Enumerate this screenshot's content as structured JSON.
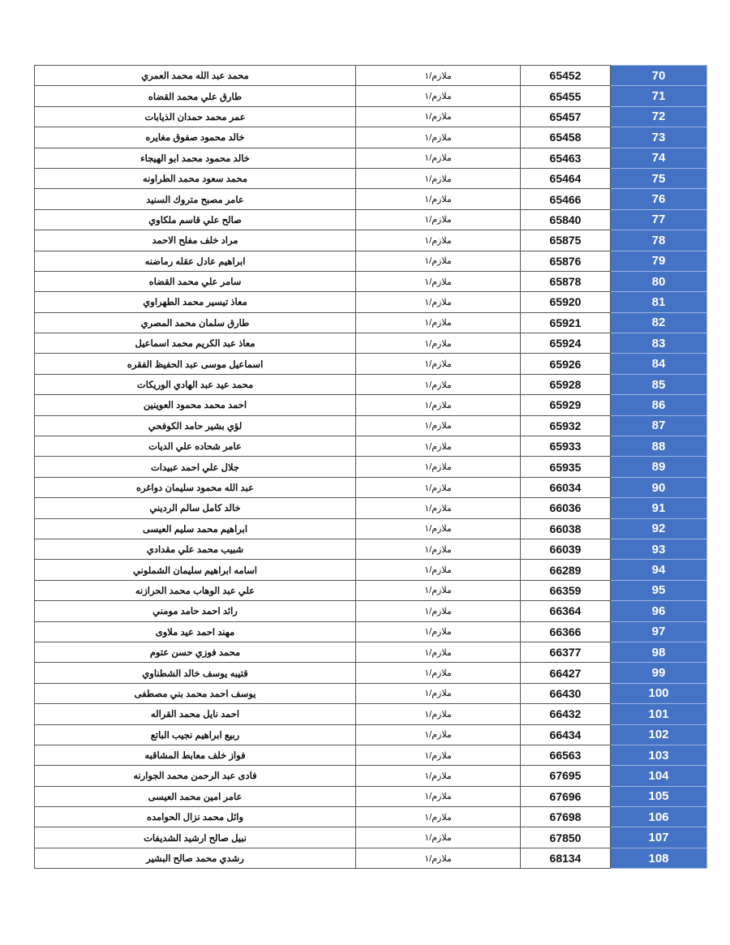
{
  "table": {
    "accent_color": "#4472C4",
    "rows": [
      {
        "index": "70",
        "number": "65452",
        "rank": "ملازم/١",
        "name": "محمد عبد الله محمد العمري"
      },
      {
        "index": "71",
        "number": "65455",
        "rank": "ملازم/١",
        "name": "طارق علي محمد القضاه"
      },
      {
        "index": "72",
        "number": "65457",
        "rank": "ملازم/١",
        "name": "عمر محمد حمدان الذيابات"
      },
      {
        "index": "73",
        "number": "65458",
        "rank": "ملازم/١",
        "name": "خالد محمود صفوق مغايره"
      },
      {
        "index": "74",
        "number": "65463",
        "rank": "ملازم/١",
        "name": "خالد محمود محمد ابو الهيجاء"
      },
      {
        "index": "75",
        "number": "65464",
        "rank": "ملازم/١",
        "name": "محمد سعود محمد الطراونه"
      },
      {
        "index": "76",
        "number": "65466",
        "rank": "ملازم/١",
        "name": "عامر مصبح متروك السنيد"
      },
      {
        "index": "77",
        "number": "65840",
        "rank": "ملازم/١",
        "name": "صالح علي قاسم ملكاوي"
      },
      {
        "index": "78",
        "number": "65875",
        "rank": "ملازم/١",
        "name": "مراد خلف مفلح الاحمد"
      },
      {
        "index": "79",
        "number": "65876",
        "rank": "ملازم/١",
        "name": "ابراهيم عادل عقله رماضنه"
      },
      {
        "index": "80",
        "number": "65878",
        "rank": "ملازم/١",
        "name": "سامر علي محمد القضاه"
      },
      {
        "index": "81",
        "number": "65920",
        "rank": "ملازم/١",
        "name": "معاذ تيسير محمد الطهراوي"
      },
      {
        "index": "82",
        "number": "65921",
        "rank": "ملازم/١",
        "name": "طارق سلمان محمد المصري"
      },
      {
        "index": "83",
        "number": "65924",
        "rank": "ملازم/١",
        "name": "معاذ عبد الكريم محمد اسماعيل"
      },
      {
        "index": "84",
        "number": "65926",
        "rank": "ملازم/١",
        "name": "اسماعيل موسى عبد الحفيظ الفقره"
      },
      {
        "index": "85",
        "number": "65928",
        "rank": "ملازم/١",
        "name": "محمد عيد عبد الهادي الوريكات"
      },
      {
        "index": "86",
        "number": "65929",
        "rank": "ملازم/١",
        "name": "احمد محمد محمود العوينين"
      },
      {
        "index": "87",
        "number": "65932",
        "rank": "ملازم/١",
        "name": "لؤي بشير حامد الكوفحي"
      },
      {
        "index": "88",
        "number": "65933",
        "rank": "ملازم/١",
        "name": "عامر شحاده علي الديات"
      },
      {
        "index": "89",
        "number": "65935",
        "rank": "ملازم/١",
        "name": "جلال علي احمد عبيدات"
      },
      {
        "index": "90",
        "number": "66034",
        "rank": "ملازم/١",
        "name": "عبد الله محمود سليمان دواغره"
      },
      {
        "index": "91",
        "number": "66036",
        "rank": "ملازم/١",
        "name": "خالد كامل سالم الرديني"
      },
      {
        "index": "92",
        "number": "66038",
        "rank": "ملازم/١",
        "name": "ابراهيم محمد سليم العيسى"
      },
      {
        "index": "93",
        "number": "66039",
        "rank": "ملازم/١",
        "name": "شبيب محمد علي مقدادي"
      },
      {
        "index": "94",
        "number": "66289",
        "rank": "ملازم/١",
        "name": "اسامه ابراهيم سليمان الشملوني"
      },
      {
        "index": "95",
        "number": "66359",
        "rank": "ملازم/١",
        "name": "علي عبد الوهاب محمد الحرازنه"
      },
      {
        "index": "96",
        "number": "66364",
        "rank": "ملازم/١",
        "name": "رائد احمد حامد مومني"
      },
      {
        "index": "97",
        "number": "66366",
        "rank": "ملازم/١",
        "name": "مهند احمد عيد ملاوى"
      },
      {
        "index": "98",
        "number": "66377",
        "rank": "ملازم/١",
        "name": "محمد فوزي حسن عتوم"
      },
      {
        "index": "99",
        "number": "66427",
        "rank": "ملازم/١",
        "name": "قتيبه يوسف خالد الشطناوي"
      },
      {
        "index": "100",
        "number": "66430",
        "rank": "ملازم/١",
        "name": "يوسف احمد محمد بني  مصطفى"
      },
      {
        "index": "101",
        "number": "66432",
        "rank": "ملازم/١",
        "name": "احمد نايل محمد القراله"
      },
      {
        "index": "102",
        "number": "66434",
        "rank": "ملازم/١",
        "name": "ربيع ابراهيم نجيب الباتع"
      },
      {
        "index": "103",
        "number": "66563",
        "rank": "ملازم/١",
        "name": "فواز خلف معابط المشاقبه"
      },
      {
        "index": "104",
        "number": "67695",
        "rank": "ملازم/١",
        "name": "فادى عبد الرحمن محمد الجوارنه"
      },
      {
        "index": "105",
        "number": "67696",
        "rank": "ملازم/١",
        "name": "عامر امين محمد العيسى"
      },
      {
        "index": "106",
        "number": "67698",
        "rank": "ملازم/١",
        "name": "وائل محمد نزال الحوامده"
      },
      {
        "index": "107",
        "number": "67850",
        "rank": "ملازم/١",
        "name": "نبيل صالح ارشيد الشديفات"
      },
      {
        "index": "108",
        "number": "68134",
        "rank": "ملازم/١",
        "name": "رشدي محمد صالح البشير"
      }
    ]
  }
}
